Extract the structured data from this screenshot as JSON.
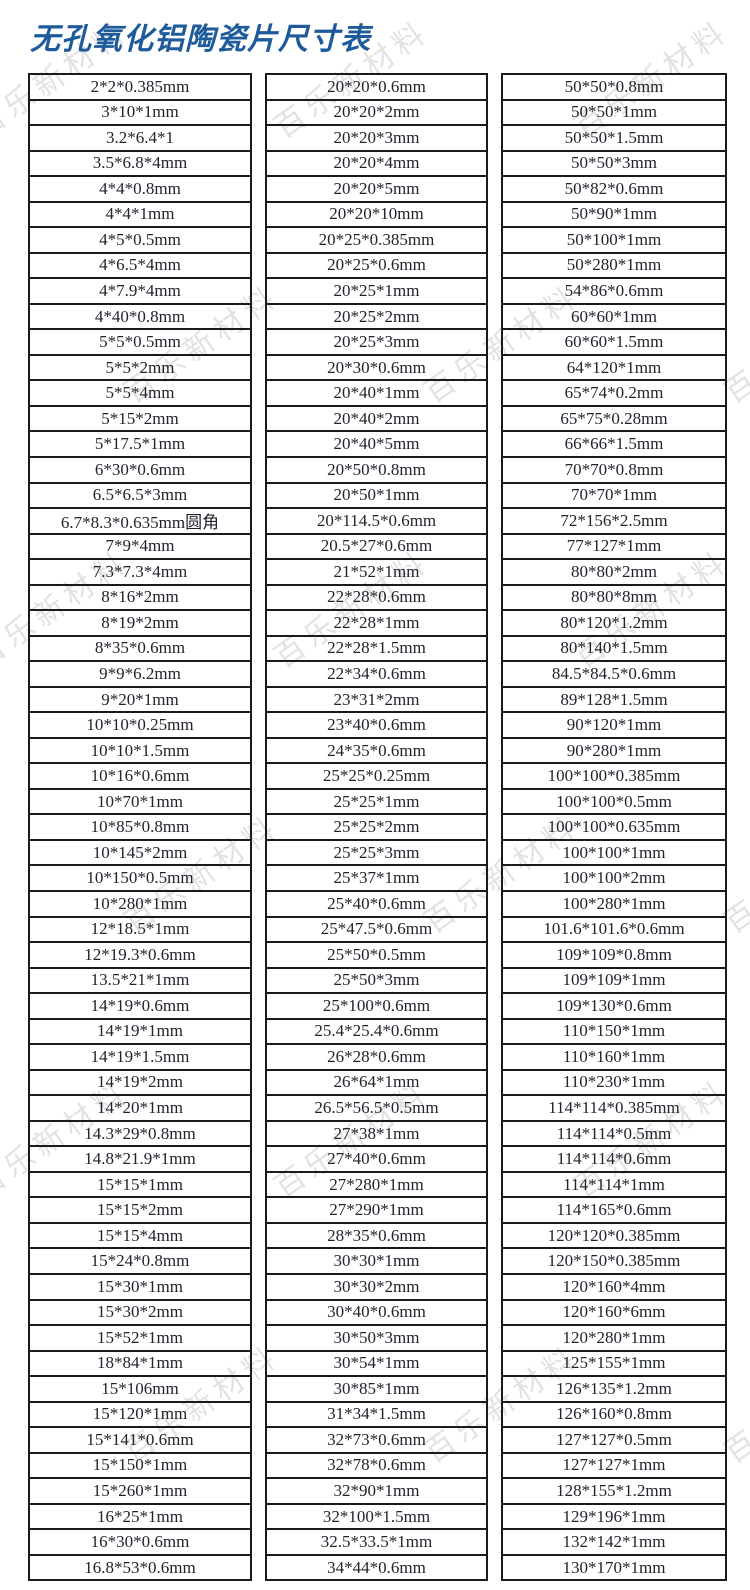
{
  "page": {
    "title": "无孔氧化铝陶瓷片尺寸表"
  },
  "watermark": {
    "text": "百乐新材料"
  },
  "colors": {
    "title_blue": "#1e5b9b",
    "table_border": "#1a1a1a",
    "cell_text": "#20242c",
    "watermark_gray": "#969696"
  },
  "table": {
    "columns": [
      {
        "rows": [
          "2*2*0.385mm",
          "3*10*1mm",
          "3.2*6.4*1",
          "3.5*6.8*4mm",
          "4*4*0.8mm",
          "4*4*1mm",
          "4*5*0.5mm",
          "4*6.5*4mm",
          "4*7.9*4mm",
          "4*40*0.8mm",
          "5*5*0.5mm",
          "5*5*2mm",
          "5*5*4mm",
          "5*15*2mm",
          "5*17.5*1mm",
          "6*30*0.6mm",
          "6.5*6.5*3mm",
          "6.7*8.3*0.635mm圆角",
          "7*9*4mm",
          "7.3*7.3*4mm",
          "8*16*2mm",
          "8*19*2mm",
          "8*35*0.6mm",
          "9*9*6.2mm",
          "9*20*1mm",
          "10*10*0.25mm",
          "10*10*1.5mm",
          "10*16*0.6mm",
          "10*70*1mm",
          "10*85*0.8mm",
          "10*145*2mm",
          "10*150*0.5mm",
          "10*280*1mm",
          "12*18.5*1mm",
          "12*19.3*0.6mm",
          "13.5*21*1mm",
          "14*19*0.6mm",
          "14*19*1mm",
          "14*19*1.5mm",
          "14*19*2mm",
          "14*20*1mm",
          "14.3*29*0.8mm",
          "14.8*21.9*1mm",
          "15*15*1mm",
          "15*15*2mm",
          "15*15*4mm",
          "15*24*0.8mm",
          "15*30*1mm",
          "15*30*2mm",
          "15*52*1mm",
          "18*84*1mm",
          "15*106mm",
          "15*120*1mm",
          "15*141*0.6mm",
          "15*150*1mm",
          "15*260*1mm",
          "16*25*1mm",
          "16*30*0.6mm",
          "16.8*53*0.6mm"
        ]
      },
      {
        "rows": [
          "20*20*0.6mm",
          "20*20*2mm",
          "20*20*3mm",
          "20*20*4mm",
          "20*20*5mm",
          "20*20*10mm",
          "20*25*0.385mm",
          "20*25*0.6mm",
          "20*25*1mm",
          "20*25*2mm",
          "20*25*3mm",
          "20*30*0.6mm",
          "20*40*1mm",
          "20*40*2mm",
          "20*40*5mm",
          "20*50*0.8mm",
          "20*50*1mm",
          "20*114.5*0.6mm",
          "20.5*27*0.6mm",
          "21*52*1mm",
          "22*28*0.6mm",
          "22*28*1mm",
          "22*28*1.5mm",
          "22*34*0.6mm",
          "23*31*2mm",
          "23*40*0.6mm",
          "24*35*0.6mm",
          "25*25*0.25mm",
          "25*25*1mm",
          "25*25*2mm",
          "25*25*3mm",
          "25*37*1mm",
          "25*40*0.6mm",
          "25*47.5*0.6mm",
          "25*50*0.5mm",
          "25*50*3mm",
          "25*100*0.6mm",
          "25.4*25.4*0.6mm",
          "26*28*0.6mm",
          "26*64*1mm",
          "26.5*56.5*0.5mm",
          "27*38*1mm",
          "27*40*0.6mm",
          "27*280*1mm",
          "27*290*1mm",
          "28*35*0.6mm",
          "30*30*1mm",
          "30*30*2mm",
          "30*40*0.6mm",
          "30*50*3mm",
          "30*54*1mm",
          "30*85*1mm",
          "31*34*1.5mm",
          "32*73*0.6mm",
          "32*78*0.6mm",
          "32*90*1mm",
          "32*100*1.5mm",
          "32.5*33.5*1mm",
          "34*44*0.6mm"
        ]
      },
      {
        "rows": [
          "50*50*0.8mm",
          "50*50*1mm",
          "50*50*1.5mm",
          "50*50*3mm",
          "50*82*0.6mm",
          "50*90*1mm",
          "50*100*1mm",
          "50*280*1mm",
          "54*86*0.6mm",
          "60*60*1mm",
          "60*60*1.5mm",
          "64*120*1mm",
          "65*74*0.2mm",
          "65*75*0.28mm",
          "66*66*1.5mm",
          "70*70*0.8mm",
          "70*70*1mm",
          "72*156*2.5mm",
          "77*127*1mm",
          "80*80*2mm",
          "80*80*8mm",
          "80*120*1.2mm",
          "80*140*1.5mm",
          "84.5*84.5*0.6mm",
          "89*128*1.5mm",
          "90*120*1mm",
          "90*280*1mm",
          "100*100*0.385mm",
          "100*100*0.5mm",
          "100*100*0.635mm",
          "100*100*1mm",
          "100*100*2mm",
          "100*280*1mm",
          "101.6*101.6*0.6mm",
          "109*109*0.8mm",
          "109*109*1mm",
          "109*130*0.6mm",
          "110*150*1mm",
          "110*160*1mm",
          "110*230*1mm",
          "114*114*0.385mm",
          "114*114*0.5mm",
          "114*114*0.6mm",
          "114*114*1mm",
          "114*165*0.6mm",
          "120*120*0.385mm",
          "120*150*0.385mm",
          "120*160*4mm",
          "120*160*6mm",
          "120*280*1mm",
          "125*155*1mm",
          "126*135*1.2mm",
          "126*160*0.8mm",
          "127*127*0.5mm",
          "127*127*1mm",
          "128*155*1.2mm",
          "129*196*1mm",
          "132*142*1mm",
          "130*170*1mm"
        ]
      }
    ]
  }
}
